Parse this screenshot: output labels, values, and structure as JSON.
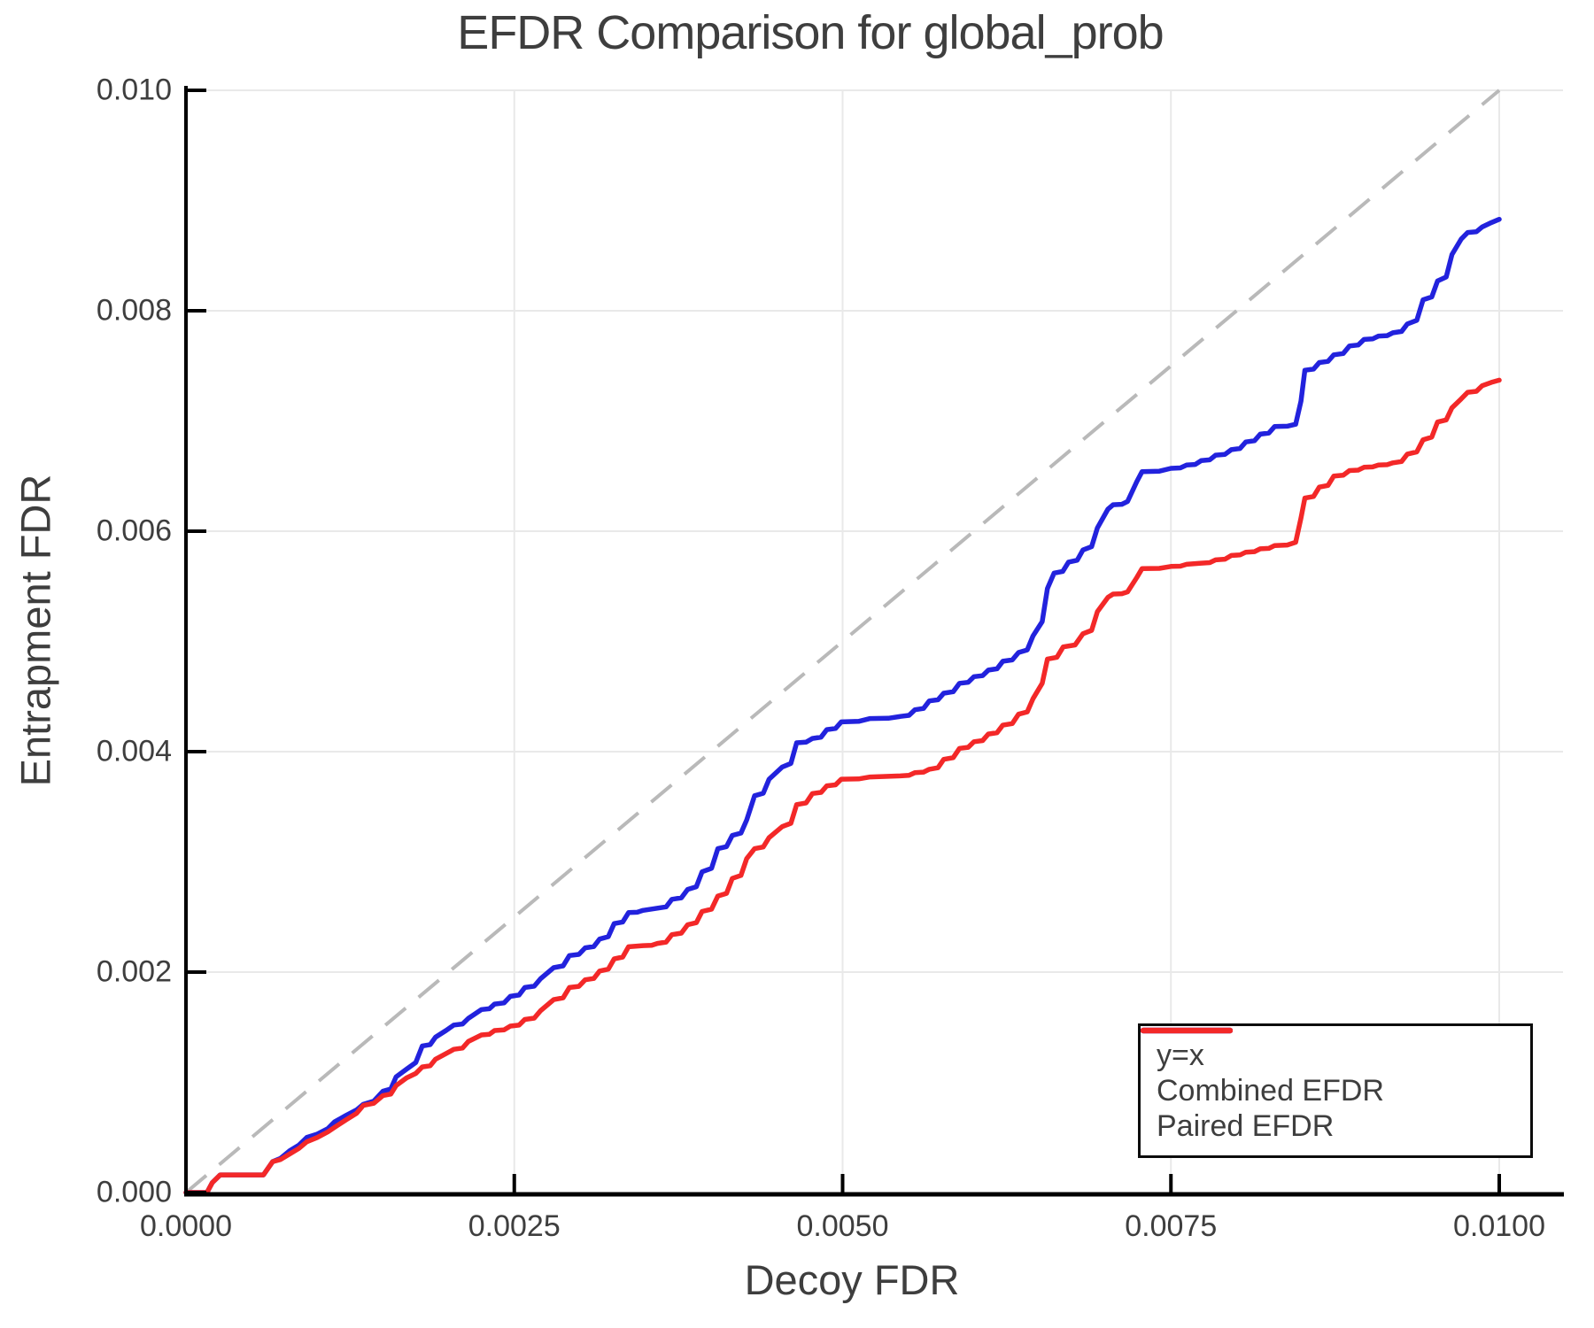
{
  "chart_data": {
    "type": "line",
    "title": "EFDR Comparison for global_prob",
    "xlabel": "Decoy FDR",
    "ylabel": "Entrapment FDR",
    "xlim": [
      0,
      0.01048
    ],
    "ylim": [
      0,
      0.0101
    ],
    "grid": true,
    "legend_position": "bottom-right",
    "x_ticks": {
      "values": [
        0,
        0.0025,
        0.005,
        0.0075,
        0.01
      ],
      "labels": [
        "0.0000",
        "0.0025",
        "0.0050",
        "0.0075",
        "0.0100"
      ]
    },
    "y_ticks": {
      "values": [
        0,
        0.002,
        0.004,
        0.006,
        0.008,
        0.01
      ],
      "labels": [
        "0.000",
        "0.002",
        "0.004",
        "0.006",
        "0.008",
        "0.010"
      ]
    },
    "colors": {
      "identity": "#b9b9b9",
      "combined": "#2222dd",
      "paired": "#f32828",
      "grid": "#e9e9e9",
      "axis": "#000000",
      "text": "#3e3e3e"
    },
    "series": [
      {
        "name": "y=x",
        "style": "dashed",
        "color": "#b9b9b9",
        "points": [
          [
            0,
            0
          ],
          [
            0.01,
            0.01
          ]
        ]
      },
      {
        "name": "Combined EFDR",
        "style": "solid",
        "color": "#2222dd",
        "points": [
          [
            0,
            0
          ],
          [
            0.00016,
            0
          ],
          [
            0.0002,
            9e-05
          ],
          [
            0.00026,
            0.00016
          ],
          [
            0.00059,
            0.00016
          ],
          [
            0.00066,
            0.00028
          ],
          [
            0.00072,
            0.00031
          ],
          [
            0.00079,
            0.00038
          ],
          [
            0.00086,
            0.00043
          ],
          [
            0.00092,
            0.0005
          ],
          [
            0.001,
            0.00053
          ],
          [
            0.00108,
            0.00058
          ],
          [
            0.00113,
            0.00064
          ],
          [
            0.00122,
            0.0007
          ],
          [
            0.0013,
            0.00075
          ],
          [
            0.00135,
            0.0008
          ],
          [
            0.00143,
            0.00083
          ],
          [
            0.0015,
            0.00092
          ],
          [
            0.0016,
            0.00105
          ],
          [
            0.00168,
            0.00112
          ],
          [
            0.00175,
            0.00118
          ],
          [
            0.0018,
            0.00133
          ],
          [
            0.0019,
            0.00141
          ],
          [
            0.00198,
            0.00147
          ],
          [
            0.00204,
            0.00152
          ],
          [
            0.00215,
            0.00158
          ],
          [
            0.00225,
            0.00166
          ],
          [
            0.00235,
            0.00171
          ],
          [
            0.00247,
            0.00178
          ],
          [
            0.00258,
            0.00186
          ],
          [
            0.0027,
            0.00194
          ],
          [
            0.0028,
            0.00204
          ],
          [
            0.00292,
            0.00215
          ],
          [
            0.00304,
            0.00222
          ],
          [
            0.00315,
            0.0023
          ],
          [
            0.00326,
            0.00244
          ],
          [
            0.00337,
            0.00254
          ],
          [
            0.00348,
            0.00256
          ],
          [
            0.00359,
            0.00258
          ],
          [
            0.0037,
            0.00266
          ],
          [
            0.00382,
            0.00275
          ],
          [
            0.00393,
            0.00291
          ],
          [
            0.00405,
            0.00312
          ],
          [
            0.00416,
            0.00324
          ],
          [
            0.00427,
            0.00338
          ],
          [
            0.00433,
            0.0036
          ],
          [
            0.00444,
            0.00375
          ],
          [
            0.00454,
            0.00386
          ],
          [
            0.00465,
            0.00408
          ],
          [
            0.00477,
            0.00412
          ],
          [
            0.00488,
            0.0042
          ],
          [
            0.00499,
            0.00427
          ],
          [
            0.00521,
            0.0043
          ],
          [
            0.00544,
            0.00432
          ],
          [
            0.00555,
            0.00438
          ],
          [
            0.00566,
            0.00446
          ],
          [
            0.00577,
            0.00453
          ],
          [
            0.00589,
            0.00462
          ],
          [
            0.006,
            0.00468
          ],
          [
            0.00611,
            0.00474
          ],
          [
            0.00622,
            0.00482
          ],
          [
            0.00634,
            0.0049
          ],
          [
            0.00645,
            0.00505
          ],
          [
            0.00652,
            0.00518
          ],
          [
            0.00656,
            0.00548
          ],
          [
            0.00661,
            0.00562
          ],
          [
            0.00672,
            0.00572
          ],
          [
            0.00683,
            0.00583
          ],
          [
            0.00694,
            0.00603
          ],
          [
            0.00702,
            0.0062
          ],
          [
            0.00706,
            0.00624
          ],
          [
            0.00717,
            0.00627
          ],
          [
            0.00724,
            0.00645
          ],
          [
            0.00728,
            0.00654
          ],
          [
            0.0075,
            0.00657
          ],
          [
            0.00762,
            0.0066
          ],
          [
            0.00773,
            0.00664
          ],
          [
            0.00784,
            0.00669
          ],
          [
            0.00796,
            0.00674
          ],
          [
            0.00807,
            0.00681
          ],
          [
            0.00818,
            0.00688
          ],
          [
            0.00829,
            0.00695
          ],
          [
            0.00845,
            0.00697
          ],
          [
            0.00849,
            0.00718
          ],
          [
            0.00852,
            0.00746
          ],
          [
            0.00863,
            0.00753
          ],
          [
            0.00874,
            0.0076
          ],
          [
            0.00886,
            0.00768
          ],
          [
            0.00897,
            0.00774
          ],
          [
            0.00908,
            0.00777
          ],
          [
            0.00919,
            0.0078
          ],
          [
            0.0093,
            0.00788
          ],
          [
            0.00942,
            0.0081
          ],
          [
            0.00953,
            0.00827
          ],
          [
            0.00964,
            0.00851
          ],
          [
            0.00971,
            0.00865
          ],
          [
            0.00976,
            0.00871
          ],
          [
            0.00987,
            0.00876
          ],
          [
            0.00994,
            0.0088
          ],
          [
            0.01,
            0.00883
          ]
        ]
      },
      {
        "name": "Paired EFDR",
        "style": "solid",
        "color": "#f32828",
        "points": [
          [
            0,
            0
          ],
          [
            0.00016,
            0
          ],
          [
            0.0002,
            9e-05
          ],
          [
            0.00026,
            0.00016
          ],
          [
            0.00059,
            0.00016
          ],
          [
            0.00066,
            0.00028
          ],
          [
            0.00072,
            0.0003
          ],
          [
            0.00079,
            0.00035
          ],
          [
            0.00086,
            0.0004
          ],
          [
            0.00092,
            0.00046
          ],
          [
            0.001,
            0.0005
          ],
          [
            0.00108,
            0.00055
          ],
          [
            0.00113,
            0.00059
          ],
          [
            0.00122,
            0.00066
          ],
          [
            0.0013,
            0.00072
          ],
          [
            0.00135,
            0.00079
          ],
          [
            0.00143,
            0.00081
          ],
          [
            0.0015,
            0.00088
          ],
          [
            0.0016,
            0.00097
          ],
          [
            0.00168,
            0.00104
          ],
          [
            0.00175,
            0.00108
          ],
          [
            0.0018,
            0.00114
          ],
          [
            0.0019,
            0.00121
          ],
          [
            0.00198,
            0.00126
          ],
          [
            0.00204,
            0.0013
          ],
          [
            0.00215,
            0.00137
          ],
          [
            0.00225,
            0.00143
          ],
          [
            0.00235,
            0.00147
          ],
          [
            0.00247,
            0.00151
          ],
          [
            0.00258,
            0.00157
          ],
          [
            0.0027,
            0.00165
          ],
          [
            0.0028,
            0.00175
          ],
          [
            0.00292,
            0.00186
          ],
          [
            0.00304,
            0.00193
          ],
          [
            0.00315,
            0.00201
          ],
          [
            0.00326,
            0.00212
          ],
          [
            0.00337,
            0.00223
          ],
          [
            0.00348,
            0.00224
          ],
          [
            0.00359,
            0.00226
          ],
          [
            0.0037,
            0.00234
          ],
          [
            0.00382,
            0.00243
          ],
          [
            0.00393,
            0.00255
          ],
          [
            0.00405,
            0.00269
          ],
          [
            0.00416,
            0.00285
          ],
          [
            0.00427,
            0.00303
          ],
          [
            0.00433,
            0.00312
          ],
          [
            0.00444,
            0.00322
          ],
          [
            0.00454,
            0.00332
          ],
          [
            0.00465,
            0.00352
          ],
          [
            0.00477,
            0.00362
          ],
          [
            0.00488,
            0.00369
          ],
          [
            0.00499,
            0.00375
          ],
          [
            0.00521,
            0.00377
          ],
          [
            0.00544,
            0.00378
          ],
          [
            0.00555,
            0.00381
          ],
          [
            0.00566,
            0.00384
          ],
          [
            0.00577,
            0.00393
          ],
          [
            0.00589,
            0.00403
          ],
          [
            0.006,
            0.00409
          ],
          [
            0.00611,
            0.00416
          ],
          [
            0.00622,
            0.00424
          ],
          [
            0.00634,
            0.00434
          ],
          [
            0.00645,
            0.00448
          ],
          [
            0.00652,
            0.00462
          ],
          [
            0.00656,
            0.00484
          ],
          [
            0.00668,
            0.00495
          ],
          [
            0.00683,
            0.00507
          ],
          [
            0.00694,
            0.00527
          ],
          [
            0.00702,
            0.0054
          ],
          [
            0.00706,
            0.00543
          ],
          [
            0.00717,
            0.00545
          ],
          [
            0.00724,
            0.00558
          ],
          [
            0.00728,
            0.00566
          ],
          [
            0.0075,
            0.00568
          ],
          [
            0.00762,
            0.0057
          ],
          [
            0.00773,
            0.00571
          ],
          [
            0.00784,
            0.00574
          ],
          [
            0.00796,
            0.00578
          ],
          [
            0.00807,
            0.00581
          ],
          [
            0.00818,
            0.00584
          ],
          [
            0.00829,
            0.00587
          ],
          [
            0.00845,
            0.0059
          ],
          [
            0.00849,
            0.00612
          ],
          [
            0.00852,
            0.0063
          ],
          [
            0.00863,
            0.0064
          ],
          [
            0.00874,
            0.0065
          ],
          [
            0.00886,
            0.00655
          ],
          [
            0.00897,
            0.00658
          ],
          [
            0.00908,
            0.0066
          ],
          [
            0.00919,
            0.00662
          ],
          [
            0.0093,
            0.0067
          ],
          [
            0.00942,
            0.00683
          ],
          [
            0.00953,
            0.00699
          ],
          [
            0.00964,
            0.00712
          ],
          [
            0.00971,
            0.0072
          ],
          [
            0.00976,
            0.00726
          ],
          [
            0.00987,
            0.00732
          ],
          [
            0.00994,
            0.00735
          ],
          [
            0.01,
            0.00737
          ]
        ]
      }
    ],
    "legend": {
      "entries": [
        {
          "label": "y=x",
          "color": "#b9b9b9",
          "style": "dashed"
        },
        {
          "label": "Combined EFDR",
          "color": "#2222dd",
          "style": "solid"
        },
        {
          "label": "Paired EFDR",
          "color": "#f32828",
          "style": "solid"
        }
      ]
    }
  }
}
